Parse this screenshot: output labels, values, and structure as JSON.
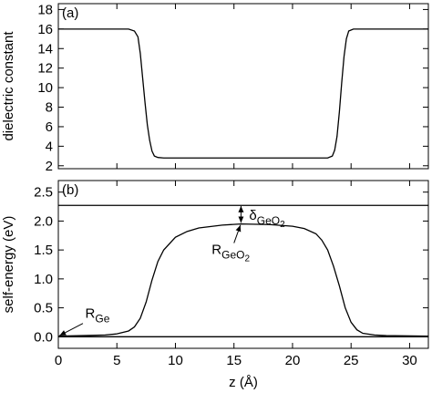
{
  "chart_data": [
    {
      "type": "line",
      "panel_label": "(a)",
      "ylabel": "dielectric constant",
      "xlim": [
        0,
        31.6
      ],
      "ylim": [
        1.7,
        18.6
      ],
      "xticks": [
        0,
        5,
        10,
        15,
        20,
        25,
        30
      ],
      "yticks": [
        2,
        4,
        6,
        8,
        10,
        12,
        14,
        16,
        18
      ],
      "series": [
        {
          "color": "#000000",
          "x": [
            0,
            6,
            6.5,
            6.8,
            7.0,
            7.2,
            7.4,
            7.6,
            7.8,
            8.0,
            8.2,
            8.5,
            9,
            15,
            23,
            23.4,
            23.6,
            23.8,
            24.0,
            24.2,
            24.4,
            24.6,
            24.8,
            25.2,
            31.6
          ],
          "values": [
            16,
            16,
            15.8,
            15.2,
            13.5,
            11.0,
            8.5,
            6.2,
            4.6,
            3.5,
            3.0,
            2.85,
            2.8,
            2.8,
            2.8,
            3.0,
            3.6,
            5.0,
            7.5,
            10.5,
            13.2,
            15.0,
            15.8,
            16,
            16
          ]
        }
      ]
    },
    {
      "type": "line",
      "panel_label": "(b)",
      "ylabel": "self-energy (eV)",
      "xlabel": "z (Å)",
      "xlim": [
        0,
        31.6
      ],
      "ylim": [
        -0.2,
        2.7
      ],
      "xticks": [
        0,
        5,
        10,
        15,
        20,
        25,
        30
      ],
      "yticks": [
        {
          "value": 0,
          "label": "0.0"
        },
        0.5,
        {
          "value": 1,
          "label": "1.0"
        },
        1.5,
        {
          "value": 2,
          "label": "2.0"
        },
        2.5
      ],
      "annotations": [
        {
          "text": "δ",
          "sub": "GeO",
          "subsub": "2"
        },
        {
          "text": "R",
          "sub": "GeO",
          "subsub": "2"
        },
        {
          "text": "R",
          "sub": "Ge"
        }
      ],
      "series": [
        {
          "color": "#000000",
          "x": [
            0,
            31.6
          ],
          "values": [
            2.27,
            2.27
          ]
        },
        {
          "color": "#000000",
          "x": [
            0,
            31.6
          ],
          "values": [
            0,
            0
          ]
        },
        {
          "color": "#000000",
          "x": [
            0,
            2,
            4,
            5,
            6,
            6.5,
            7,
            7.5,
            8,
            8.5,
            9,
            10,
            11,
            12,
            14,
            15.6,
            18,
            20,
            21,
            22,
            22.5,
            23,
            23.5,
            24,
            24.5,
            25,
            25.5,
            26,
            27,
            28,
            31.6
          ],
          "values": [
            0.01,
            0.02,
            0.03,
            0.05,
            0.1,
            0.17,
            0.32,
            0.6,
            0.98,
            1.3,
            1.5,
            1.72,
            1.82,
            1.88,
            1.93,
            1.95,
            1.94,
            1.91,
            1.87,
            1.78,
            1.67,
            1.5,
            1.22,
            0.88,
            0.5,
            0.25,
            0.12,
            0.06,
            0.03,
            0.02,
            0.01
          ]
        }
      ]
    }
  ]
}
